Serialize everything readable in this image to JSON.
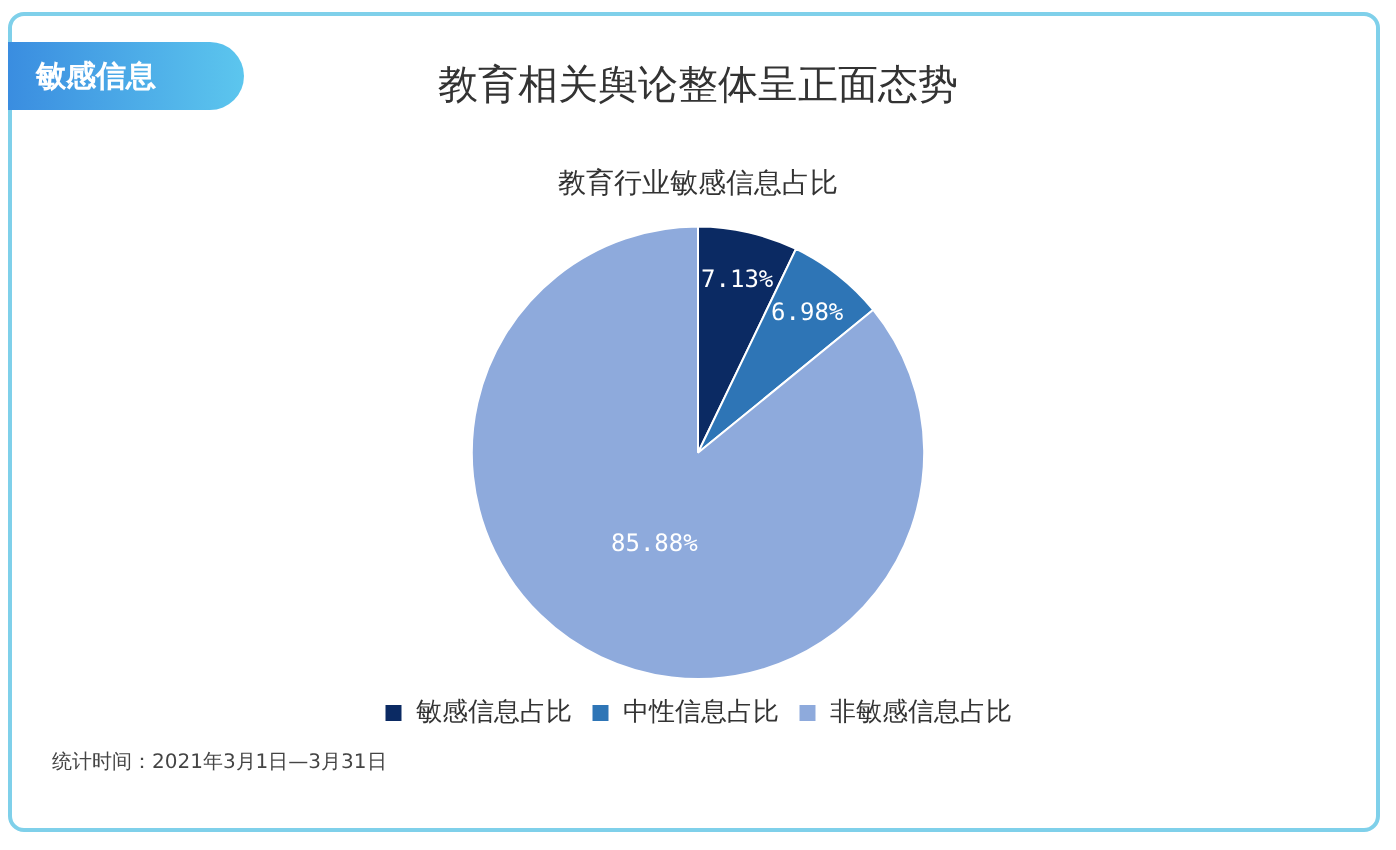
{
  "chart_data": {
    "type": "pie",
    "title": "教育相关舆论整体呈正面态势",
    "subtitle": "教育行业敏感信息占比",
    "categories": [
      "敏感信息占比",
      "中性信息占比",
      "非敏感信息占比"
    ],
    "values": [
      7.13,
      6.98,
      85.88
    ],
    "colors": [
      "#0b2a63",
      "#2e75b6",
      "#8eaadc"
    ],
    "value_labels": [
      "7.13%",
      "6.98%",
      "85.88%"
    ],
    "legend": "bottom",
    "annotations": [
      "敏感信息",
      "统计时间：2021年3月1日—3月31日"
    ]
  }
}
